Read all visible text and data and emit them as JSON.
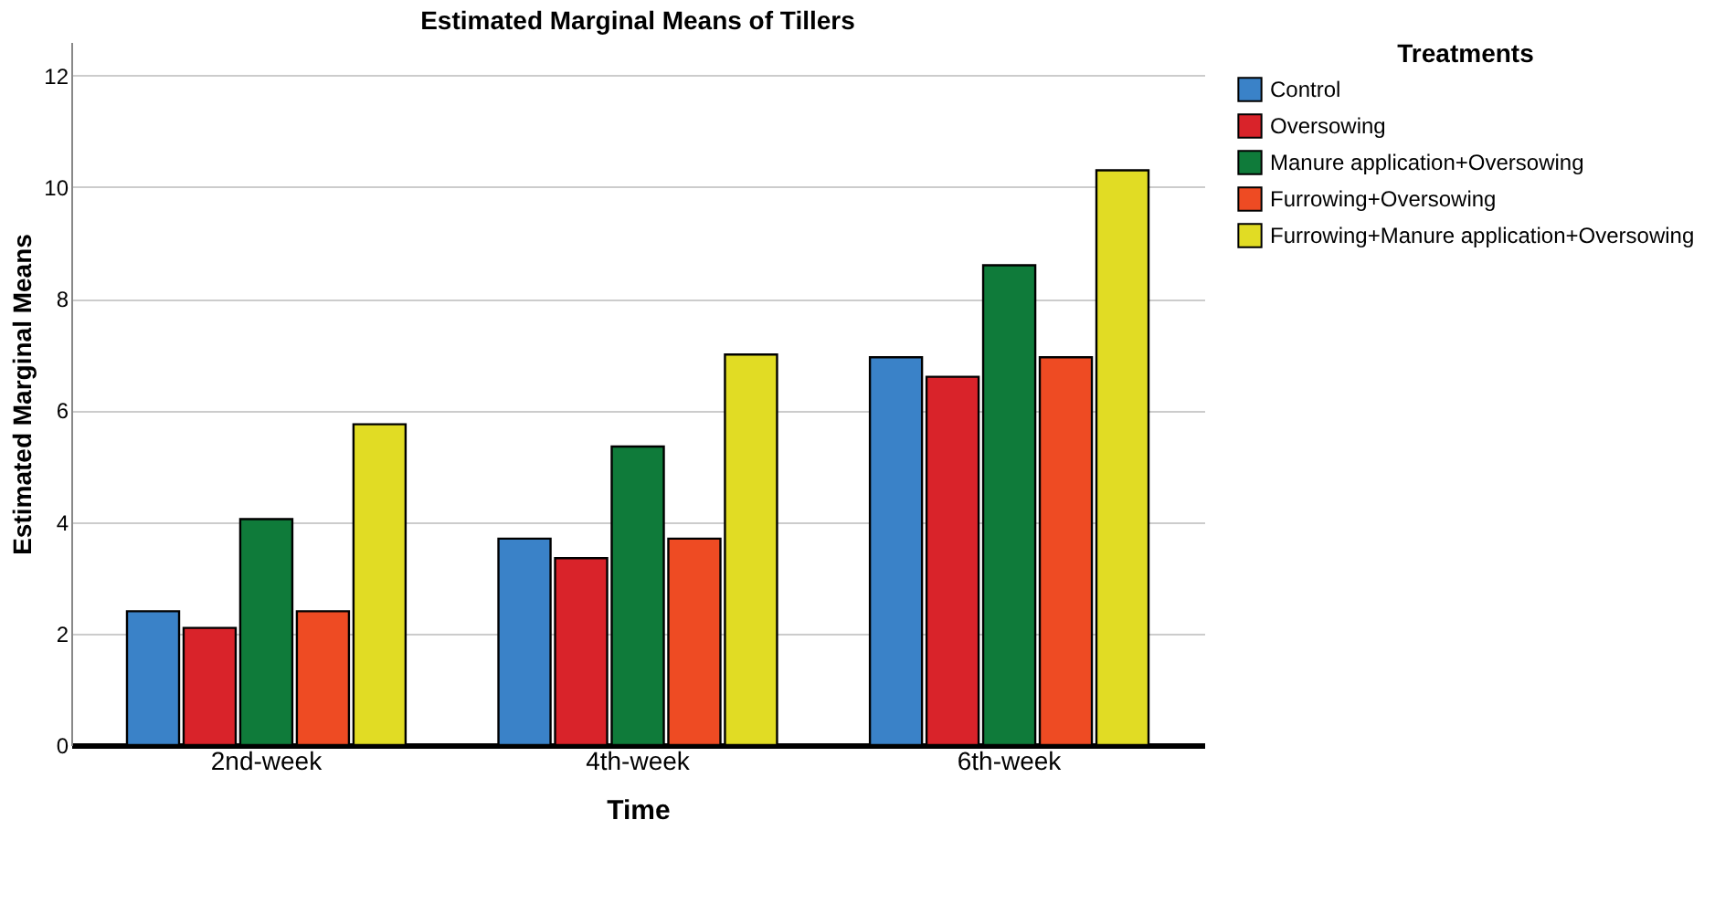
{
  "chart_data": {
    "type": "bar",
    "title": "Estimated Marginal Means of Tillers",
    "xlabel": "Time",
    "ylabel": "Estimated Marginal Means",
    "legend_title": "Treatments",
    "categories": [
      "2nd-week",
      "4th-week",
      "6th-week"
    ],
    "series": [
      {
        "name": "Control",
        "color": "#3a82c8",
        "values": [
          2.4,
          3.7,
          6.95
        ]
      },
      {
        "name": "Oversowing",
        "color": "#d9232a",
        "values": [
          2.1,
          3.35,
          6.6
        ]
      },
      {
        "name": "Manure application+Oversowing",
        "color": "#0f7b3a",
        "values": [
          4.05,
          5.35,
          8.6
        ]
      },
      {
        "name": "Furrowing+Oversowing",
        "color": "#ee4b23",
        "values": [
          2.4,
          3.7,
          6.95
        ]
      },
      {
        "name": "Furrowing+Manure application+Oversowing",
        "color": "#e1dc24",
        "values": [
          5.75,
          7.0,
          10.3
        ]
      }
    ],
    "ylim": [
      0,
      12.6
    ],
    "yticks": [
      0,
      2,
      4,
      6,
      8,
      10,
      12
    ],
    "grid": "y",
    "legend": "top right"
  }
}
